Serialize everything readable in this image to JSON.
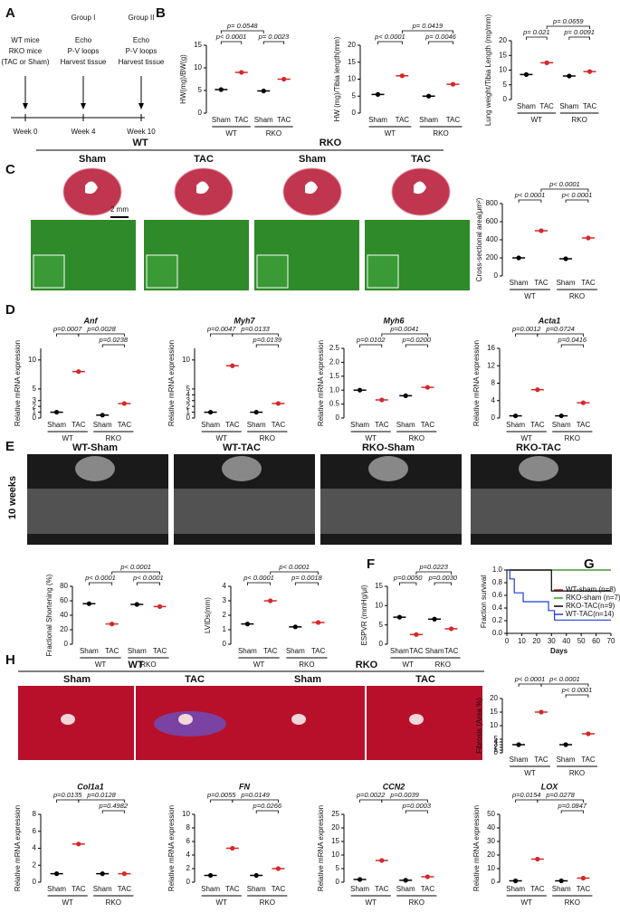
{
  "panel_labels": [
    "A",
    "B",
    "C",
    "D",
    "E",
    "F",
    "G",
    "H"
  ],
  "timeline": {
    "steps": [
      {
        "label": "Week 0",
        "text": [
          "WT mice",
          "RKO mice",
          "(TAC or Sham)"
        ]
      },
      {
        "label": "Week 4",
        "header": "Group I",
        "text": [
          "Echo",
          "P-V loops",
          "Harvest tissue"
        ]
      },
      {
        "label": "Week 10",
        "header": "Group II",
        "text": [
          "Echo",
          "P-V loops",
          "Harvest tissue"
        ]
      }
    ]
  },
  "histology_c": {
    "groups": [
      "WT",
      "RKO"
    ],
    "columns": [
      "Sham",
      "TAC",
      "Sham",
      "TAC"
    ],
    "scale": "2 mm"
  },
  "echo": {
    "side_label": "10 weeks",
    "titles": [
      "WT-Sham",
      "WT-TAC",
      "RKO-Sham",
      "RKO-TAC"
    ]
  },
  "histology_h": {
    "groups": [
      "WT",
      "RKO"
    ],
    "columns": [
      "Sham",
      "TAC",
      "Sham",
      "TAC"
    ]
  },
  "chart_data": [
    {
      "type": "dot",
      "ylabel": "HW(mg)/BW(g)",
      "categories": [
        "Sham",
        "TAC",
        "Sham",
        "TAC"
      ],
      "groups": [
        "WT",
        "RKO"
      ],
      "values": [
        5.2,
        9,
        4.9,
        7.5
      ],
      "colors": [
        "#000000",
        "#d62728",
        "#000000",
        "#d62728"
      ],
      "ylim": [
        0,
        15
      ],
      "yticks": [
        0,
        5,
        10,
        15
      ],
      "annotations": [
        "p< 0.0001",
        "p= 0.0023",
        "p= 0.0548"
      ]
    },
    {
      "type": "dot",
      "ylabel": "HW (mg)/Tibia length(mm)",
      "categories": [
        "Sham",
        "TAC",
        "Sham",
        "TAC"
      ],
      "groups": [
        "WT",
        "RKO"
      ],
      "values": [
        5.5,
        11,
        5,
        8.5
      ],
      "colors": [
        "#000000",
        "#d62728",
        "#000000",
        "#d62728"
      ],
      "ylim": [
        0,
        20
      ],
      "yticks": [
        0,
        5,
        10,
        15,
        20
      ],
      "annotations": [
        "p< 0.0001",
        "p= 0.0046",
        "p= 0.0419"
      ]
    },
    {
      "type": "dot",
      "ylabel": "Lung weight/Tibia Length (mg/mm)",
      "categories": [
        "Sham",
        "TAC",
        "Sham",
        "TAC"
      ],
      "groups": [
        "WT",
        "RKO"
      ],
      "values": [
        8.5,
        12.5,
        8,
        9.5
      ],
      "colors": [
        "#000000",
        "#d62728",
        "#000000",
        "#d62728"
      ],
      "ylim": [
        0,
        20
      ],
      "yticks": [
        0,
        5,
        10,
        15,
        20
      ],
      "annotations": [
        "p= 0.021",
        "p= 0.0091",
        "p= 0.0659"
      ]
    },
    {
      "type": "dot",
      "ylabel": "Cross-sectional area(μm²)",
      "categories": [
        "Sham",
        "TAC",
        "Sham",
        "TAC"
      ],
      "groups": [
        "WT",
        "RKO"
      ],
      "values": [
        200,
        500,
        190,
        420
      ],
      "colors": [
        "#000000",
        "#d62728",
        "#000000",
        "#d62728"
      ],
      "ylim": [
        0,
        800
      ],
      "yticks": [
        0,
        200,
        400,
        600,
        800
      ],
      "annotations": [
        "p< 0.0001",
        "p< 0.0001",
        "p< 0.0001"
      ]
    },
    {
      "type": "dot",
      "title": "Anf",
      "ylabel": "Relative mRNA expression",
      "categories": [
        "Sham",
        "TAC",
        "Sham",
        "TAC"
      ],
      "groups": [
        "WT",
        "RKO"
      ],
      "values": [
        1,
        8,
        0.5,
        2.5
      ],
      "colors": [
        "#000000",
        "#d62728",
        "#000000",
        "#d62728"
      ],
      "ylim": [
        0,
        12
      ],
      "yticks": [
        0,
        1,
        2,
        3,
        5,
        10
      ],
      "annotations": [
        "p=0.0007",
        "p=0.0028",
        "p=0.0238"
      ]
    },
    {
      "type": "dot",
      "title": "Myh7",
      "ylabel": "Relative mRNA expression",
      "categories": [
        "Sham",
        "TAC",
        "Sham",
        "TAC"
      ],
      "groups": [
        "WT",
        "RKO"
      ],
      "values": [
        1,
        9,
        1,
        2.5
      ],
      "colors": [
        "#000000",
        "#d62728",
        "#000000",
        "#d62728"
      ],
      "ylim": [
        0,
        12
      ],
      "yticks": [
        0,
        1,
        2,
        3,
        4,
        5,
        10
      ],
      "annotations": [
        "p=0.0047",
        "p=0.0133",
        "p=0.0139"
      ]
    },
    {
      "type": "dot",
      "title": "Myh6",
      "ylabel": "Relative mRNA expression",
      "categories": [
        "Sham",
        "TAC",
        "Sham",
        "TAC"
      ],
      "groups": [
        "WT",
        "RKO"
      ],
      "values": [
        1.0,
        0.65,
        0.8,
        1.1
      ],
      "colors": [
        "#000000",
        "#d62728",
        "#000000",
        "#d62728"
      ],
      "ylim": [
        0,
        2.5
      ],
      "yticks": [
        0,
        {
          "value": 0.5,
          "label": "0.5"
        },
        {
          "value": 1,
          "label": "1.0"
        },
        {
          "value": 1.5,
          "label": "1.5"
        },
        {
          "value": 2,
          "label": "2.0"
        },
        {
          "value": 2.5,
          "label": "2.5"
        }
      ],
      "annotations": [
        "p=0.0102",
        "p=0.0041",
        "p=0.0200"
      ]
    },
    {
      "type": "dot",
      "title": "Acta1",
      "ylabel": "Relative mRNA expression",
      "categories": [
        "Sham",
        "TAC",
        "Sham",
        "TAC"
      ],
      "groups": [
        "WT",
        "RKO"
      ],
      "values": [
        0.5,
        6.5,
        0.5,
        3.5
      ],
      "colors": [
        "#000000",
        "#d62728",
        "#000000",
        "#d62728"
      ],
      "ylim": [
        0,
        16
      ],
      "yticks": [
        0,
        4,
        8,
        12,
        16
      ],
      "annotations": [
        "p=0.0012",
        "p=0.0724",
        "p=0.0416"
      ]
    },
    {
      "type": "dot",
      "ylabel": "Fractional Shortening (%)",
      "categories": [
        "Sham",
        "TAC",
        "Sham",
        "TAC"
      ],
      "groups": [
        "WT",
        "RKO"
      ],
      "values": [
        56,
        28,
        55,
        52
      ],
      "colors": [
        "#000000",
        "#d62728",
        "#000000",
        "#d62728"
      ],
      "ylim": [
        0,
        80
      ],
      "yticks": [
        0,
        20,
        40,
        60,
        80
      ],
      "annotations": [
        "p< 0.0001",
        "p< 0.0001",
        "p< 0.0001"
      ]
    },
    {
      "type": "dot",
      "ylabel": "LVIDs(mm)",
      "categories": [
        "Sham",
        "TAC",
        "Sham",
        "TAC"
      ],
      "groups": [
        "WT",
        "RKO"
      ],
      "values": [
        1.4,
        3,
        1.2,
        1.5
      ],
      "colors": [
        "#000000",
        "#d62728",
        "#000000",
        "#d62728"
      ],
      "ylim": [
        0,
        4
      ],
      "yticks": [
        0,
        1,
        2,
        3,
        4
      ],
      "annotations": [
        "p< 0.0001",
        "p< 0.0001",
        "p= 0.0018"
      ]
    },
    {
      "type": "dot",
      "ylabel": "ESPVR (mmHg/μl)",
      "categories": [
        "Sham",
        "TAC",
        "Sham",
        "TAC"
      ],
      "groups": [
        "WT",
        "RKO"
      ],
      "values": [
        7,
        2.5,
        6.5,
        4
      ],
      "colors": [
        "#000000",
        "#d62728",
        "#000000",
        "#d62728"
      ],
      "ylim": [
        0,
        15
      ],
      "yticks": [
        0,
        5,
        10,
        15
      ],
      "annotations": [
        "p=0.0050",
        "p=0.0223",
        "p=0.0030"
      ]
    },
    {
      "type": "line",
      "xlabel": "Days",
      "ylabel": "Fraction survival",
      "xlim": [
        0,
        70
      ],
      "xticks": [
        0,
        10,
        20,
        30,
        40,
        50,
        60,
        70
      ],
      "ylim": [
        0,
        1
      ],
      "yticks": [
        {
          "value": 0,
          "label": "0.0"
        },
        {
          "value": 0.2,
          "label": "0.2"
        },
        {
          "value": 0.4,
          "label": "0.4"
        },
        {
          "value": 0.6,
          "label": "0.6"
        },
        {
          "value": 0.8,
          "label": "0.8"
        },
        {
          "value": 1,
          "label": "1.0"
        }
      ],
      "series": [
        {
          "name": "WT-sham (n=8)",
          "color": "#d62728",
          "x": [
            0,
            70
          ],
          "values": [
            1,
            1
          ]
        },
        {
          "name": "RKO-sham (n=7)",
          "color": "#2ca02c",
          "x": [
            0,
            70
          ],
          "values": [
            1,
            1
          ]
        },
        {
          "name": "RKO-TAC(n=9)",
          "color": "#000000",
          "x": [
            0,
            30,
            70
          ],
          "values": [
            1,
            0.67,
            0.67
          ]
        },
        {
          "name": "WT-TAC(n=14)",
          "color": "#1f3fd6",
          "x": [
            0,
            2,
            5,
            11,
            28,
            32,
            70
          ],
          "values": [
            1,
            0.86,
            0.64,
            0.5,
            0.36,
            0.21,
            0.21
          ]
        }
      ]
    },
    {
      "type": "dot",
      "ylabel": "Fibrosis (Area %)",
      "categories": [
        "Sham",
        "TAC",
        "Sham",
        "TAC"
      ],
      "groups": [
        "WT",
        "RKO"
      ],
      "values": [
        3,
        15,
        3,
        7
      ],
      "colors": [
        "#000000",
        "#d62728",
        "#000000",
        "#d62728"
      ],
      "ylim": [
        0,
        20
      ],
      "yticks": [
        0,
        1,
        2,
        3,
        4,
        5,
        10,
        15,
        20
      ],
      "annotations": [
        "p< 0.0001",
        "p< 0.0001",
        "p< 0.0001"
      ]
    },
    {
      "type": "dot",
      "title": "Col1a1",
      "ylabel": "Relative mRNA expression",
      "categories": [
        "Sham",
        "TAC",
        "Sham",
        "TAC"
      ],
      "groups": [
        "WT",
        "RKO"
      ],
      "values": [
        1,
        4.5,
        1,
        1
      ],
      "colors": [
        "#000000",
        "#d62728",
        "#000000",
        "#d62728"
      ],
      "ylim": [
        0,
        8
      ],
      "yticks": [
        0,
        2,
        4,
        6,
        8
      ],
      "annotations": [
        "p=0.0135",
        "p=0.0128",
        "p=0.4982"
      ]
    },
    {
      "type": "dot",
      "title": "FN",
      "ylabel": "Relative mRNA expression",
      "categories": [
        "Sham",
        "TAC",
        "Sham",
        "TAC"
      ],
      "groups": [
        "WT",
        "RKO"
      ],
      "values": [
        1,
        5,
        1,
        2
      ],
      "colors": [
        "#000000",
        "#d62728",
        "#000000",
        "#d62728"
      ],
      "ylim": [
        0,
        10
      ],
      "yticks": [
        0,
        2,
        4,
        6,
        8,
        10
      ],
      "annotations": [
        "p=0.0055",
        "p=0.0149",
        "p=0.0266"
      ]
    },
    {
      "type": "dot",
      "title": "CCN2",
      "ylabel": "Relative mRNA expression",
      "categories": [
        "Sham",
        "TAC",
        "Sham",
        "TAC"
      ],
      "groups": [
        "WT",
        "RKO"
      ],
      "values": [
        1,
        8,
        0.7,
        2
      ],
      "colors": [
        "#000000",
        "#d62728",
        "#000000",
        "#d62728"
      ],
      "ylim": [
        0,
        25
      ],
      "yticks": [
        0,
        5,
        10,
        15,
        20,
        25
      ],
      "annotations": [
        "p=0.0022",
        "p=0.0039",
        "p=0.0003"
      ]
    },
    {
      "type": "dot",
      "title": "LOX",
      "ylabel": "Relative mRNA expression",
      "categories": [
        "Sham",
        "TAC",
        "Sham",
        "TAC"
      ],
      "groups": [
        "WT",
        "RKO"
      ],
      "values": [
        1,
        17,
        1,
        3
      ],
      "colors": [
        "#000000",
        "#d62728",
        "#000000",
        "#d62728"
      ],
      "ylim": [
        0,
        50
      ],
      "yticks": [
        0,
        10,
        20,
        30,
        40,
        50
      ],
      "annotations": [
        "p=0.0154",
        "p=0.0278",
        "p=0.0847"
      ]
    }
  ]
}
